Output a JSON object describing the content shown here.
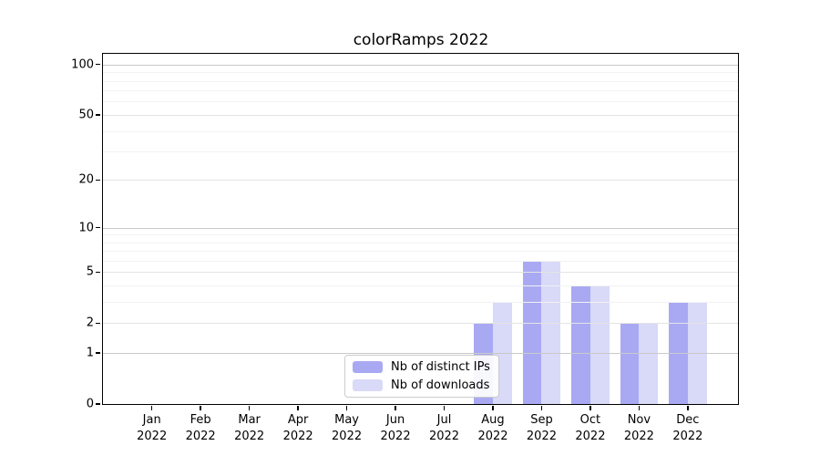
{
  "chart_data": {
    "type": "bar",
    "title": "colorRamps 2022",
    "categories": [
      "Jan",
      "Feb",
      "Mar",
      "Apr",
      "May",
      "Jun",
      "Jul",
      "Aug",
      "Sep",
      "Oct",
      "Nov",
      "Dec"
    ],
    "x_year_label": "2022",
    "series": [
      {
        "name": "Nb of distinct IPs",
        "color": "#a9a9f3",
        "values": [
          0,
          0,
          0,
          0,
          0,
          0,
          0,
          2,
          6,
          4,
          2,
          3
        ]
      },
      {
        "name": "Nb of downloads",
        "color": "#d9d9f8",
        "values": [
          0,
          0,
          0,
          0,
          0,
          0,
          0,
          3,
          6,
          4,
          2,
          3
        ]
      }
    ],
    "y_axis": {
      "scale": "log10(1+x)",
      "ticks": [
        0,
        1,
        2,
        5,
        10,
        20,
        50,
        100
      ],
      "decade_ticks": [
        1,
        10,
        100
      ],
      "minor_ticks": [
        3,
        4,
        6,
        7,
        8,
        9,
        30,
        40,
        60,
        70,
        80,
        90
      ],
      "range_top": 115
    },
    "grid": {
      "decade_color": "#c9c9c9",
      "major_color": "#e4e4e4",
      "minor_color": "#f2f2f2"
    },
    "legend_position": "lower center",
    "axis_color": "#000000",
    "background": "#ffffff"
  }
}
